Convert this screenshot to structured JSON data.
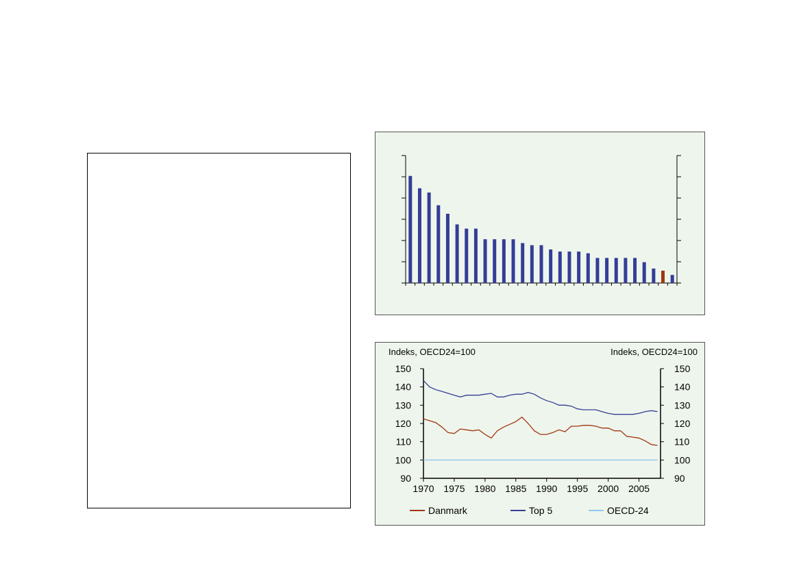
{
  "chart_data": [
    {
      "type": "bar",
      "values": [
        25.2,
        22.3,
        21.3,
        18.3,
        16.3,
        13.8,
        12.8,
        12.8,
        10.3,
        10.3,
        10.3,
        10.3,
        9.4,
        8.9,
        8.9,
        7.9,
        7.4,
        7.4,
        7.4,
        7.0,
        5.9,
        5.9,
        5.9,
        5.9,
        5.9,
        4.9,
        3.4,
        2.9,
        1.9
      ],
      "highlight_index": 27,
      "colors": {
        "bar": "#343d96",
        "highlight": "#a0360f",
        "background": "#eef5ec"
      },
      "ylim": [
        0,
        30
      ],
      "grid": false
    },
    {
      "type": "line",
      "left_axis_label": "Indeks, OECD24=100",
      "right_axis_label": "Indeks, OECD24=100",
      "ylim": [
        90,
        150
      ],
      "yticks": [
        90,
        100,
        110,
        120,
        130,
        140,
        150
      ],
      "xlim": [
        1970,
        2008.5
      ],
      "xticks": [
        1970,
        1975,
        1980,
        1985,
        1990,
        1995,
        2000,
        2005
      ],
      "grid": false,
      "legend_position": "bottom",
      "series": [
        {
          "name": "Danmark",
          "color": "#a0360f",
          "x": [
            1970,
            1971,
            1972,
            1973,
            1974,
            1975,
            1976,
            1977,
            1978,
            1979,
            1980,
            1981,
            1982,
            1983,
            1984,
            1985,
            1986,
            1987,
            1988,
            1989,
            1990,
            1991,
            1992,
            1993,
            1994,
            1995,
            1996,
            1997,
            1998,
            1999,
            2000,
            2001,
            2002,
            2003,
            2004,
            2005,
            2006,
            2007,
            2008
          ],
          "values": [
            122.5,
            121.5,
            120.5,
            118,
            115,
            114.5,
            117,
            116.5,
            116,
            116.5,
            114,
            112,
            116,
            118,
            119.5,
            121,
            123.5,
            120,
            116,
            114,
            114,
            115,
            116.5,
            115.5,
            118.5,
            118.5,
            119,
            119,
            118.5,
            117.5,
            117.5,
            116,
            116,
            113,
            112.5,
            112,
            110.5,
            108.5,
            108
          ]
        },
        {
          "name": "Top 5",
          "color": "#343d96",
          "x": [
            1970,
            1971,
            1972,
            1973,
            1974,
            1975,
            1976,
            1977,
            1978,
            1979,
            1980,
            1981,
            1982,
            1983,
            1984,
            1985,
            1986,
            1987,
            1988,
            1989,
            1990,
            1991,
            1992,
            1993,
            1994,
            1995,
            1996,
            1997,
            1998,
            1999,
            2000,
            2001,
            2002,
            2003,
            2004,
            2005,
            2006,
            2007,
            2008
          ],
          "values": [
            143.5,
            140,
            138.5,
            137.5,
            136.5,
            135.5,
            134.5,
            135.5,
            135.5,
            135.5,
            136,
            136.5,
            134.5,
            134.5,
            135.5,
            136,
            136,
            137,
            136,
            134,
            132.5,
            131.5,
            130,
            130,
            129.5,
            128,
            127.5,
            127.5,
            127.5,
            126.5,
            125.5,
            125,
            125,
            125,
            125,
            125.5,
            126.5,
            127,
            126.5
          ]
        },
        {
          "name": "OECD-24",
          "color": "#8fc7f0",
          "x": [
            1970,
            2008
          ],
          "values": [
            100,
            100
          ]
        }
      ]
    }
  ]
}
